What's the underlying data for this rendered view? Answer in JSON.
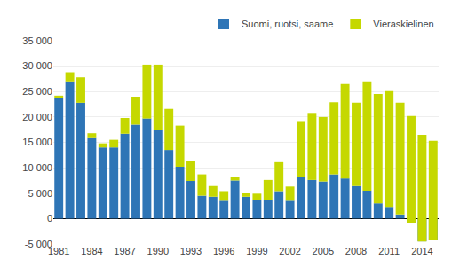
{
  "chart_data": {
    "type": "bar",
    "stacked": true,
    "categories": [
      "1981",
      null,
      null,
      "1984",
      null,
      null,
      "1987",
      null,
      null,
      "1990",
      null,
      null,
      "1993",
      null,
      null,
      "1996",
      null,
      null,
      "1999",
      null,
      null,
      "2002",
      null,
      null,
      "2005",
      null,
      null,
      "2008",
      null,
      null,
      "2011",
      null,
      null,
      "2014",
      null
    ],
    "series": [
      {
        "name": "Suomi, ruotsi, saame",
        "color": "#2E75B6",
        "values": [
          23800,
          27000,
          22800,
          16000,
          14000,
          14000,
          16700,
          18500,
          19700,
          17400,
          13500,
          10200,
          7400,
          4500,
          4300,
          3500,
          7500,
          4300,
          3700,
          3700,
          5400,
          3500,
          8200,
          7600,
          7300,
          8700,
          7900,
          6400,
          5500,
          3000,
          2300,
          800,
          -800,
          -4500,
          -4200
        ]
      },
      {
        "name": "Vieraskielinen",
        "color": "#C5D800",
        "values": [
          400,
          1800,
          5000,
          800,
          800,
          1500,
          3100,
          5500,
          10600,
          12900,
          8100,
          8100,
          3900,
          4200,
          2100,
          1900,
          700,
          800,
          1200,
          3900,
          5700,
          2800,
          11000,
          13200,
          12700,
          14200,
          18600,
          16400,
          21500,
          21500,
          22800,
          22000,
          21000,
          21000,
          19500
        ]
      }
    ],
    "ylim": [
      -5000,
      35000
    ],
    "yticks": [
      {
        "value": -5000,
        "label": "-5 000"
      },
      0,
      {
        "value": 5000,
        "label": "5 000"
      },
      {
        "value": 10000,
        "label": "10 000"
      },
      {
        "value": 15000,
        "label": "15 000"
      },
      {
        "value": 20000,
        "label": "20 000"
      },
      {
        "value": 25000,
        "label": "25 000"
      },
      {
        "value": 30000,
        "label": "30 000"
      },
      {
        "value": 35000,
        "label": "35 000"
      }
    ],
    "grid": true,
    "legend": "upper right"
  }
}
